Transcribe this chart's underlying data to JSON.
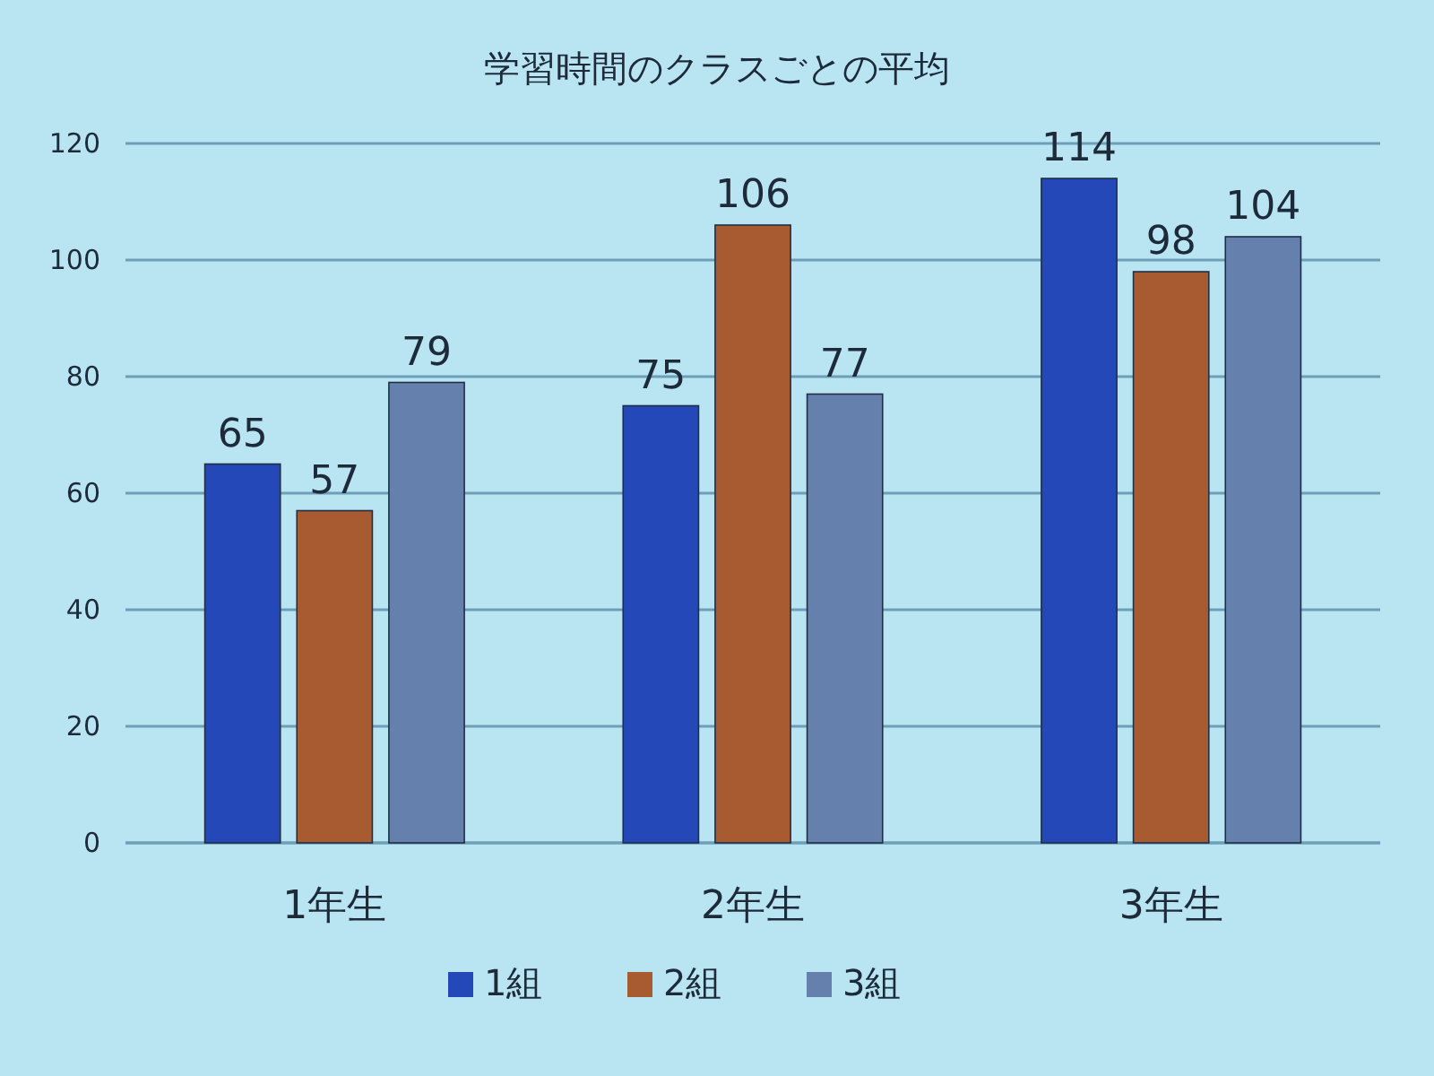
{
  "chart_data": {
    "type": "bar",
    "title": "学習時間のクラスごとの平均",
    "categories": [
      "1年生",
      "2年生",
      "3年生"
    ],
    "series": [
      {
        "name": "1組",
        "color": "#2448b8",
        "values": [
          65,
          75,
          114
        ]
      },
      {
        "name": "2組",
        "color": "#a85a30",
        "values": [
          57,
          106,
          98
        ]
      },
      {
        "name": "3組",
        "color": "#6580ac",
        "values": [
          79,
          77,
          104
        ]
      }
    ],
    "ylim": [
      0,
      120
    ],
    "yticks": [
      0,
      20,
      40,
      60,
      80,
      100,
      120
    ],
    "grid": "y",
    "legend": "bottom",
    "data_labels": true
  }
}
